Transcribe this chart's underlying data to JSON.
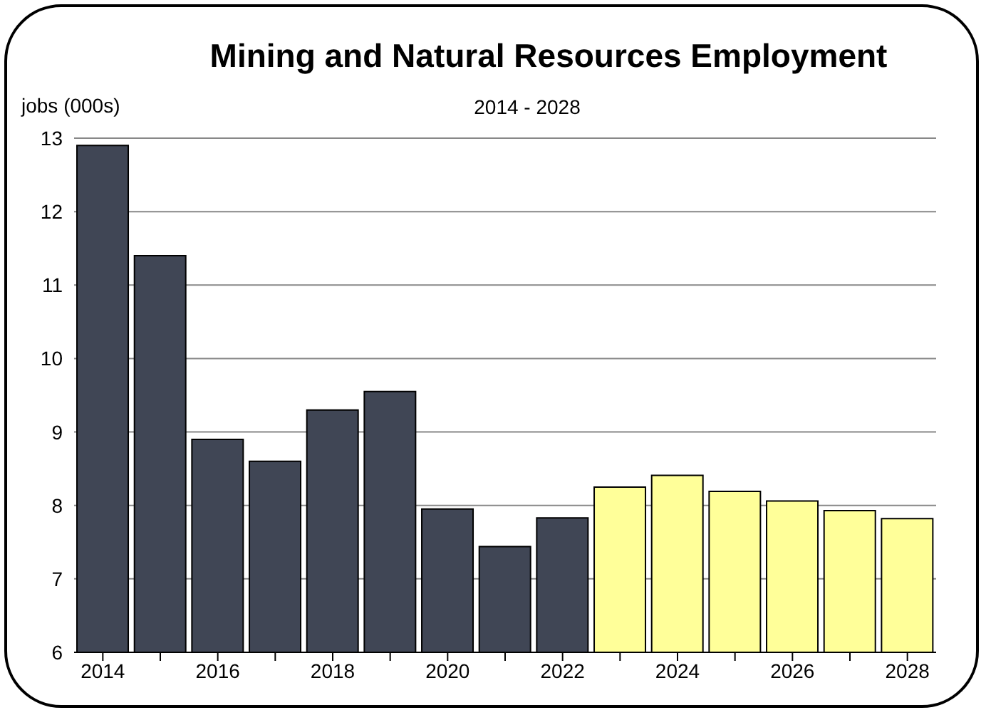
{
  "chart_data": {
    "type": "bar",
    "title": "Mining and Natural Resources Employment",
    "subtitle": "2014 - 2028",
    "ylabel": "jobs (000s)",
    "categories": [
      "2014",
      null,
      "2016",
      null,
      "2018",
      null,
      "2020",
      null,
      "2022",
      null,
      "2024",
      null,
      "2026",
      null,
      "2028"
    ],
    "values": [
      12.9,
      11.4,
      8.9,
      8.6,
      9.3,
      9.55,
      7.95,
      7.44,
      7.83,
      8.25,
      8.41,
      8.19,
      8.06,
      7.93,
      7.82
    ],
    "colors": [
      "#404655",
      "#404655",
      "#404655",
      "#404655",
      "#404655",
      "#404655",
      "#404655",
      "#404655",
      "#404655",
      "#ffff99",
      "#ffff99",
      "#ffff99",
      "#ffff99",
      "#ffff99",
      "#ffff99"
    ],
    "ylim": [
      6,
      13
    ],
    "yticks": [
      6,
      7,
      8,
      9,
      10,
      11,
      12,
      13
    ],
    "grid": "y",
    "legend": false
  }
}
